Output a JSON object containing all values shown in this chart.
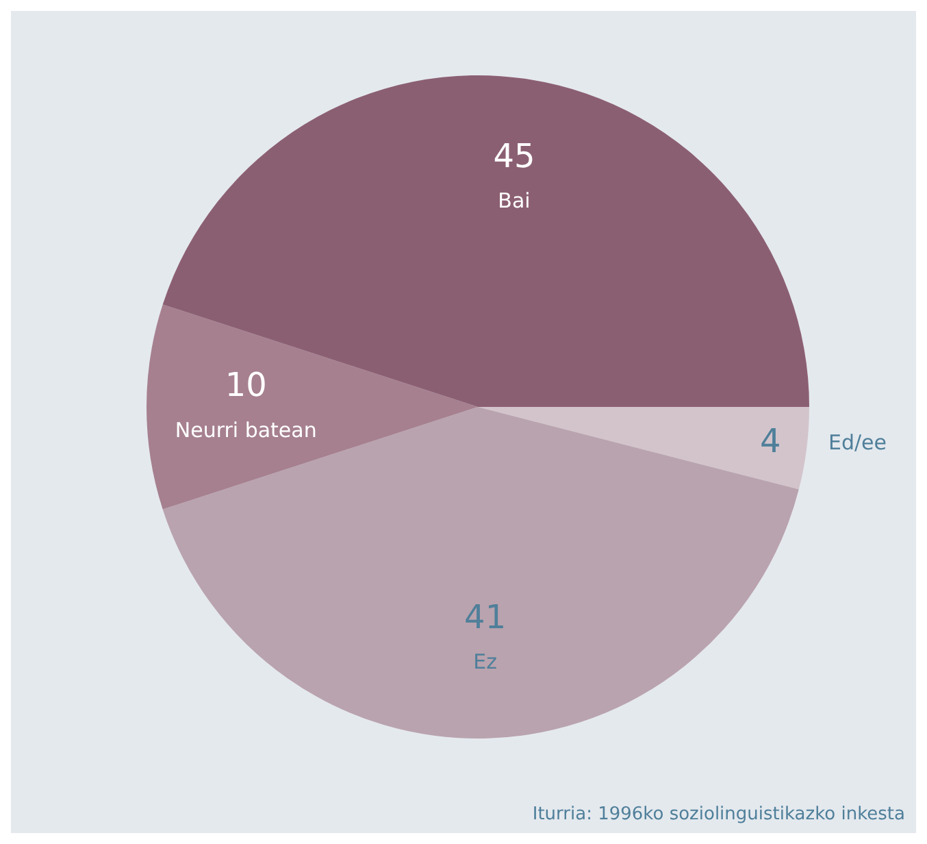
{
  "chart_data": {
    "type": "pie",
    "categories": [
      "Ed/ee",
      "Ez",
      "Neurri batean",
      "Bai"
    ],
    "values": [
      4,
      41,
      10,
      45
    ],
    "colors": [
      "#d3c4cb",
      "#b9a3ae",
      "#a6808f",
      "#8b5f72"
    ],
    "data_labels": true,
    "legend": false,
    "annotations": [
      "Iturria: 1996ko soziolinguistikazko inkesta"
    ]
  }
}
